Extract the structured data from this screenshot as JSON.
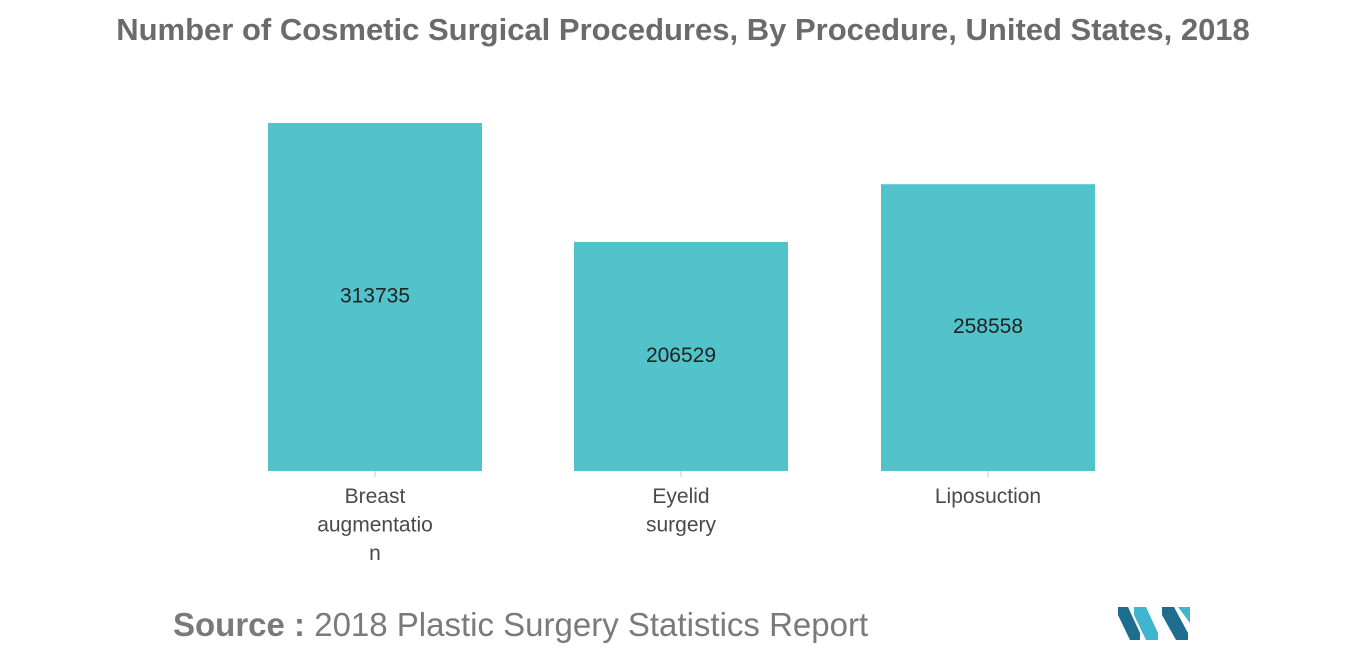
{
  "chart_data": {
    "type": "bar",
    "title": "Number of Cosmetic Surgical Procedures, By Procedure, United States, 2018",
    "categories": [
      [
        "Breast",
        "augmentatio",
        "n"
      ],
      [
        "Eyelid",
        "surgery"
      ],
      [
        "Liposuction"
      ]
    ],
    "values": [
      313735,
      206529,
      258558
    ],
    "data_labels": [
      "313735",
      "206529",
      "258558"
    ],
    "ylim": [
      0,
      313735
    ],
    "grid": false,
    "legend": "none",
    "bar_color": "#52c3ca"
  },
  "source": {
    "label": "Source :",
    "text": "2018 Plastic Surgery Statistics Report"
  },
  "colors": {
    "bar": "#52c3ca",
    "logo_dark": "#1f6d8e",
    "logo_light": "#3fb5cf"
  }
}
